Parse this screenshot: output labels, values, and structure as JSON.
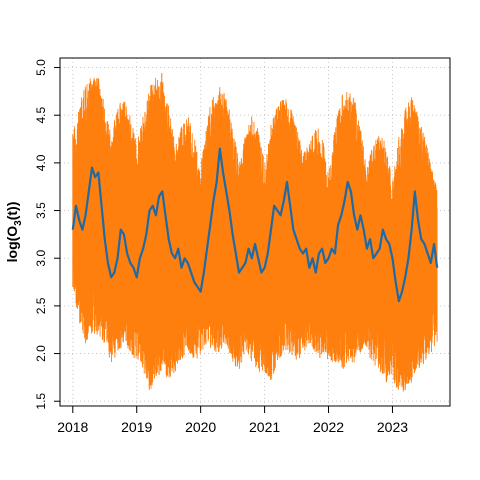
{
  "chart_data": {
    "type": "line",
    "title": "",
    "xlabel": "",
    "ylabel": {
      "prefix": "log(O",
      "subscript": "3",
      "suffix": "(t))"
    },
    "xlim": [
      2017.8,
      2023.9
    ],
    "ylim": [
      1.45,
      5.1
    ],
    "x_ticks": [
      {
        "value": 2018,
        "label": "2018"
      },
      {
        "value": 2019,
        "label": "2019"
      },
      {
        "value": 2020,
        "label": "2020"
      },
      {
        "value": 2021,
        "label": "2021"
      },
      {
        "value": 2022,
        "label": "2022"
      },
      {
        "value": 2023,
        "label": "2023"
      }
    ],
    "y_ticks": [
      {
        "value": 1.5,
        "label": "1.5"
      },
      {
        "value": 2.0,
        "label": "2.0"
      },
      {
        "value": 2.5,
        "label": "2.5"
      },
      {
        "value": 3.0,
        "label": "3.0"
      },
      {
        "value": 3.5,
        "label": "3.5"
      },
      {
        "value": 4.0,
        "label": "4.0"
      },
      {
        "value": 4.5,
        "label": "4.5"
      },
      {
        "value": 5.0,
        "label": "5.0"
      }
    ],
    "grid": true,
    "legend": "none",
    "series": [
      {
        "style": "range-band",
        "color": "#ff7f0e",
        "x": [
          2018.0,
          2018.1,
          2018.2,
          2018.3,
          2018.4,
          2018.5,
          2018.6,
          2018.7,
          2018.8,
          2018.9,
          2019.0,
          2019.1,
          2019.2,
          2019.3,
          2019.4,
          2019.5,
          2019.6,
          2019.7,
          2019.8,
          2019.9,
          2020.0,
          2020.1,
          2020.2,
          2020.3,
          2020.4,
          2020.5,
          2020.6,
          2020.7,
          2020.8,
          2020.9,
          2021.0,
          2021.1,
          2021.2,
          2021.3,
          2021.4,
          2021.5,
          2021.6,
          2021.7,
          2021.8,
          2021.9,
          2022.0,
          2022.1,
          2022.2,
          2022.3,
          2022.4,
          2022.5,
          2022.6,
          2022.7,
          2022.8,
          2022.9,
          2023.0,
          2023.1,
          2023.2,
          2023.3,
          2023.4,
          2023.5,
          2023.6,
          2023.7
        ],
        "low": [
          2.7,
          2.3,
          2.1,
          2.2,
          2.2,
          2.1,
          1.9,
          2.0,
          2.1,
          2.0,
          1.9,
          1.8,
          1.6,
          1.7,
          1.8,
          1.7,
          1.8,
          1.9,
          2.0,
          1.9,
          2.0,
          2.1,
          2.0,
          2.0,
          2.1,
          1.9,
          1.8,
          2.0,
          1.9,
          1.8,
          1.8,
          1.7,
          1.9,
          2.0,
          2.0,
          1.9,
          2.0,
          2.1,
          2.0,
          1.9,
          1.9,
          1.9,
          1.8,
          1.9,
          1.9,
          2.0,
          2.0,
          1.9,
          1.8,
          1.7,
          1.7,
          1.6,
          1.6,
          1.7,
          1.8,
          1.9,
          2.0,
          2.1
        ],
        "high": [
          4.3,
          4.6,
          4.85,
          4.9,
          4.9,
          4.6,
          4.3,
          4.6,
          4.7,
          4.5,
          4.2,
          4.5,
          4.8,
          4.9,
          4.95,
          4.6,
          4.2,
          4.4,
          4.5,
          4.3,
          4.0,
          4.5,
          4.7,
          4.8,
          4.7,
          4.4,
          4.0,
          4.3,
          4.5,
          4.4,
          4.0,
          4.4,
          4.6,
          4.7,
          4.6,
          4.4,
          4.1,
          4.2,
          4.4,
          4.3,
          3.9,
          4.4,
          4.7,
          4.8,
          4.7,
          4.4,
          4.0,
          4.2,
          4.3,
          4.2,
          3.8,
          4.3,
          4.6,
          4.7,
          4.5,
          4.3,
          4.0,
          3.8
        ]
      },
      {
        "style": "line",
        "color": "#1f6aa5",
        "x": [
          2018.0,
          2018.05,
          2018.1,
          2018.15,
          2018.2,
          2018.25,
          2018.3,
          2018.35,
          2018.4,
          2018.45,
          2018.5,
          2018.55,
          2018.6,
          2018.65,
          2018.7,
          2018.75,
          2018.8,
          2018.85,
          2018.9,
          2018.95,
          2019.0,
          2019.05,
          2019.1,
          2019.15,
          2019.2,
          2019.25,
          2019.3,
          2019.35,
          2019.4,
          2019.45,
          2019.5,
          2019.55,
          2019.6,
          2019.65,
          2019.7,
          2019.75,
          2019.8,
          2019.85,
          2019.9,
          2019.95,
          2020.0,
          2020.05,
          2020.1,
          2020.15,
          2020.2,
          2020.25,
          2020.3,
          2020.35,
          2020.4,
          2020.45,
          2020.5,
          2020.55,
          2020.6,
          2020.65,
          2020.7,
          2020.75,
          2020.8,
          2020.85,
          2020.9,
          2020.95,
          2021.0,
          2021.05,
          2021.1,
          2021.15,
          2021.2,
          2021.25,
          2021.3,
          2021.35,
          2021.4,
          2021.45,
          2021.5,
          2021.55,
          2021.6,
          2021.65,
          2021.7,
          2021.75,
          2021.8,
          2021.85,
          2021.9,
          2021.95,
          2022.0,
          2022.05,
          2022.1,
          2022.15,
          2022.2,
          2022.25,
          2022.3,
          2022.35,
          2022.4,
          2022.45,
          2022.5,
          2022.55,
          2022.6,
          2022.65,
          2022.7,
          2022.75,
          2022.8,
          2022.85,
          2022.9,
          2022.95,
          2023.0,
          2023.05,
          2023.1,
          2023.15,
          2023.2,
          2023.25,
          2023.3,
          2023.35,
          2023.4,
          2023.45,
          2023.5,
          2023.55,
          2023.6,
          2023.65,
          2023.7
        ],
        "y": [
          3.3,
          3.55,
          3.4,
          3.3,
          3.45,
          3.7,
          3.95,
          3.85,
          3.9,
          3.55,
          3.2,
          2.95,
          2.8,
          2.85,
          3.0,
          3.3,
          3.25,
          3.05,
          2.95,
          2.9,
          2.8,
          3.0,
          3.1,
          3.25,
          3.5,
          3.55,
          3.45,
          3.65,
          3.7,
          3.45,
          3.2,
          3.05,
          3.0,
          3.1,
          2.9,
          3.0,
          2.95,
          2.85,
          2.75,
          2.7,
          2.65,
          2.85,
          3.1,
          3.35,
          3.6,
          3.8,
          4.15,
          3.9,
          3.7,
          3.5,
          3.25,
          3.05,
          2.85,
          2.9,
          2.95,
          3.1,
          3.0,
          3.15,
          3.0,
          2.85,
          2.9,
          3.05,
          3.3,
          3.55,
          3.5,
          3.45,
          3.6,
          3.8,
          3.55,
          3.3,
          3.2,
          3.1,
          3.05,
          3.1,
          2.9,
          3.0,
          2.85,
          3.05,
          3.1,
          2.95,
          3.0,
          3.1,
          3.05,
          3.35,
          3.45,
          3.6,
          3.8,
          3.7,
          3.45,
          3.3,
          3.45,
          3.3,
          3.1,
          3.2,
          3.0,
          3.05,
          3.1,
          3.3,
          3.2,
          3.15,
          3.0,
          2.75,
          2.55,
          2.65,
          2.8,
          3.0,
          3.3,
          3.7,
          3.4,
          3.2,
          3.15,
          3.05,
          2.95,
          3.15,
          2.9
        ]
      }
    ]
  }
}
